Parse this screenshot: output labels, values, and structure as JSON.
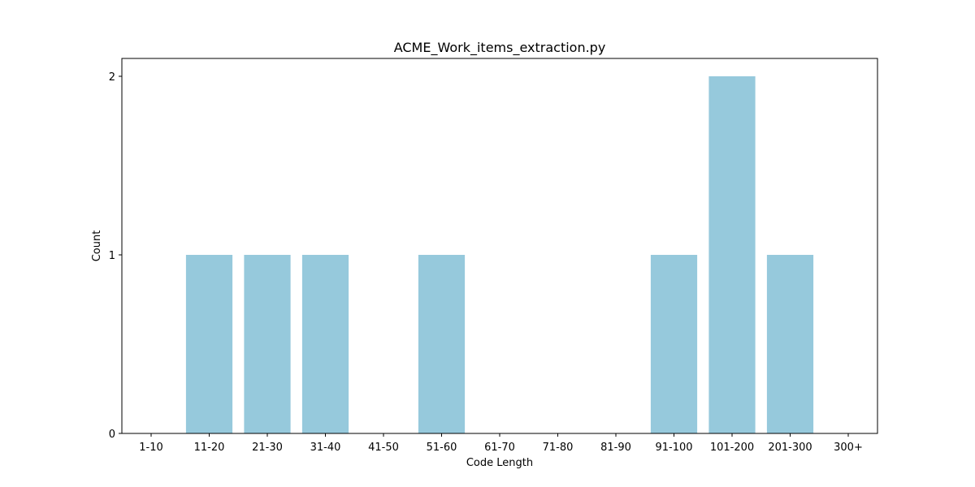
{
  "chart_data": {
    "type": "bar",
    "title": "ACME_Work_items_extraction.py",
    "xlabel": "Code Length",
    "ylabel": "Count",
    "categories": [
      "1-10",
      "11-20",
      "21-30",
      "31-40",
      "41-50",
      "51-60",
      "61-70",
      "71-80",
      "81-90",
      "91-100",
      "101-200",
      "201-300",
      "300+"
    ],
    "values": [
      0,
      1,
      1,
      1,
      0,
      1,
      0,
      0,
      0,
      1,
      2,
      1,
      0
    ],
    "yticks": [
      "0",
      "1",
      "2"
    ],
    "ylim": [
      0,
      2.1
    ],
    "grid": false,
    "legend": false,
    "bar_color": "#96c9dc"
  }
}
